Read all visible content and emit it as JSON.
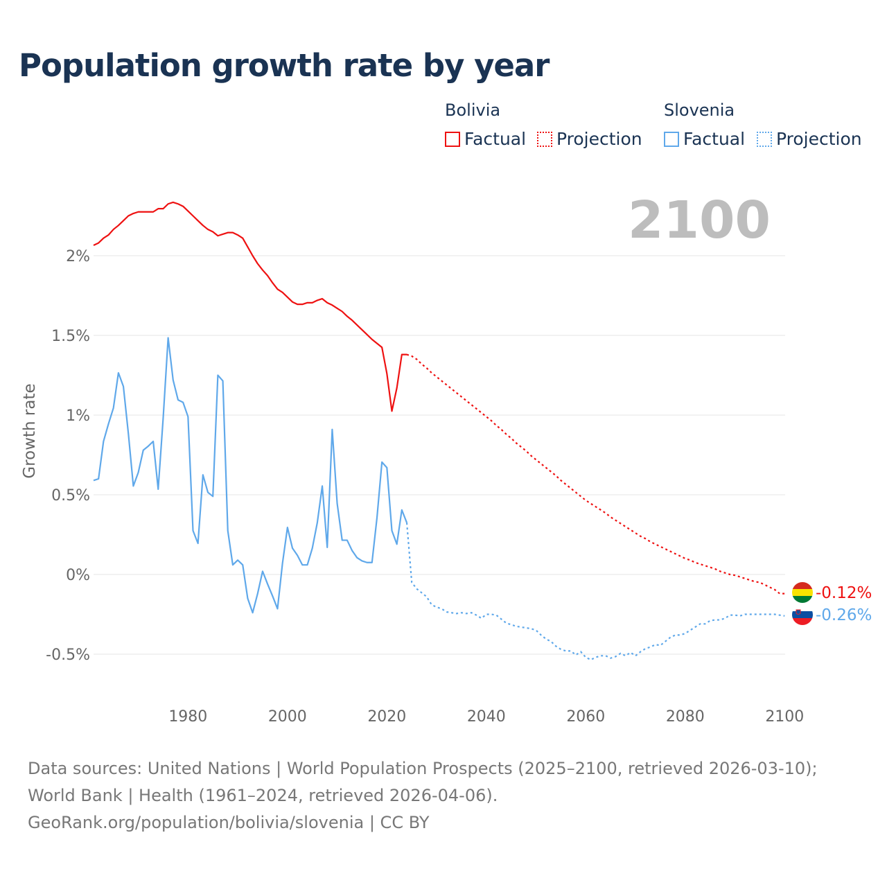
{
  "chart_data": {
    "type": "line",
    "title": "Population growth rate by year",
    "ylabel": "Growth rate",
    "xlabel": "",
    "year_watermark": "2100",
    "xlim": [
      1961,
      2100
    ],
    "ylim": [
      -0.65,
      2.45
    ],
    "x_ticks": [
      1980,
      2000,
      2020,
      2040,
      2060,
      2080,
      2100
    ],
    "x_tick_labels": [
      "1980",
      "2000",
      "2020",
      "2040",
      "2060",
      "2080",
      "2100"
    ],
    "y_ticks": [
      -0.5,
      0,
      0.5,
      1,
      1.5,
      2
    ],
    "y_tick_labels": [
      "-0.5%",
      "0%",
      "0.5%",
      "1%",
      "1.5%",
      "2%"
    ],
    "grid": true,
    "legend": {
      "placement": "top-right",
      "groups": [
        {
          "country": "Bolivia",
          "factual": "Factual",
          "projection": "Projection"
        },
        {
          "country": "Slovenia",
          "factual": "Factual",
          "projection": "Projection"
        }
      ]
    },
    "series": [
      {
        "name": "Bolivia",
        "color": "#ee1111",
        "end_label": "-0.12%",
        "factual_start": 1961,
        "factual": [
          2.065,
          2.08,
          2.11,
          2.13,
          2.165,
          2.19,
          2.22,
          2.25,
          2.265,
          2.275,
          2.275,
          2.275,
          2.275,
          2.295,
          2.295,
          2.325,
          2.335,
          2.325,
          2.31,
          2.28,
          2.25,
          2.22,
          2.19,
          2.165,
          2.15,
          2.125,
          2.135,
          2.145,
          2.145,
          2.13,
          2.11,
          2.055,
          2.0,
          1.95,
          1.91,
          1.875,
          1.83,
          1.79,
          1.77,
          1.74,
          1.71,
          1.695,
          1.695,
          1.705,
          1.705,
          1.72,
          1.73,
          1.705,
          1.69,
          1.67,
          1.65,
          1.62,
          1.595,
          1.565,
          1.535,
          1.505,
          1.475,
          1.45,
          1.425,
          1.26,
          1.025,
          1.17,
          1.38,
          1.38
        ],
        "projection_start": 2025,
        "projection": [
          1.37,
          1.35,
          1.32,
          1.295,
          1.265,
          1.24,
          1.215,
          1.19,
          1.165,
          1.14,
          1.115,
          1.09,
          1.065,
          1.04,
          1.015,
          0.99,
          0.965,
          0.935,
          0.91,
          0.88,
          0.855,
          0.825,
          0.8,
          0.775,
          0.745,
          0.72,
          0.695,
          0.67,
          0.645,
          0.62,
          0.59,
          0.565,
          0.54,
          0.515,
          0.49,
          0.465,
          0.445,
          0.425,
          0.405,
          0.385,
          0.36,
          0.34,
          0.32,
          0.3,
          0.28,
          0.26,
          0.24,
          0.225,
          0.205,
          0.19,
          0.175,
          0.16,
          0.145,
          0.13,
          0.115,
          0.1,
          0.09,
          0.075,
          0.065,
          0.055,
          0.045,
          0.035,
          0.02,
          0.01,
          0.0,
          -0.005,
          -0.015,
          -0.025,
          -0.035,
          -0.045,
          -0.05,
          -0.065,
          -0.08,
          -0.095,
          -0.12,
          -0.12
        ]
      },
      {
        "name": "Slovenia",
        "color": "#5fa8ea",
        "end_label": "-0.26%",
        "factual_start": 1961,
        "factual": [
          0.59,
          0.6,
          0.835,
          0.945,
          1.045,
          1.265,
          1.18,
          0.885,
          0.555,
          0.64,
          0.78,
          0.805,
          0.835,
          0.535,
          0.98,
          1.485,
          1.22,
          1.095,
          1.08,
          0.99,
          0.275,
          0.195,
          0.625,
          0.515,
          0.49,
          1.25,
          1.215,
          0.275,
          0.06,
          0.09,
          0.06,
          -0.15,
          -0.24,
          -0.12,
          0.02,
          -0.06,
          -0.135,
          -0.215,
          0.07,
          0.295,
          0.165,
          0.12,
          0.06,
          0.06,
          0.165,
          0.325,
          0.555,
          0.17,
          0.91,
          0.445,
          0.215,
          0.215,
          0.15,
          0.105,
          0.085,
          0.075,
          0.075,
          0.355,
          0.705,
          0.67,
          0.275,
          0.19,
          0.405,
          0.325
        ],
        "projection_start": 2025,
        "projection": [
          -0.05,
          -0.09,
          -0.115,
          -0.14,
          -0.19,
          -0.205,
          -0.215,
          -0.235,
          -0.24,
          -0.245,
          -0.24,
          -0.245,
          -0.24,
          -0.255,
          -0.275,
          -0.25,
          -0.25,
          -0.255,
          -0.28,
          -0.305,
          -0.315,
          -0.325,
          -0.33,
          -0.335,
          -0.34,
          -0.35,
          -0.38,
          -0.405,
          -0.42,
          -0.45,
          -0.47,
          -0.48,
          -0.48,
          -0.505,
          -0.485,
          -0.52,
          -0.535,
          -0.52,
          -0.51,
          -0.51,
          -0.525,
          -0.515,
          -0.495,
          -0.51,
          -0.49,
          -0.51,
          -0.485,
          -0.465,
          -0.455,
          -0.44,
          -0.445,
          -0.42,
          -0.395,
          -0.38,
          -0.38,
          -0.37,
          -0.35,
          -0.33,
          -0.31,
          -0.31,
          -0.29,
          -0.285,
          -0.285,
          -0.275,
          -0.255,
          -0.255,
          -0.26,
          -0.25,
          -0.25,
          -0.25,
          -0.25,
          -0.25,
          -0.25,
          -0.25,
          -0.255,
          -0.26
        ]
      }
    ]
  },
  "source": {
    "line1": "Data sources: United Nations | World Population Prospects (2025–2100, retrieved 2026-03-10); World Bank | Health (1961–2024, retrieved 2026-04-06).",
    "line2": "GeoRank.org/population/bolivia/slovenia | CC BY"
  }
}
